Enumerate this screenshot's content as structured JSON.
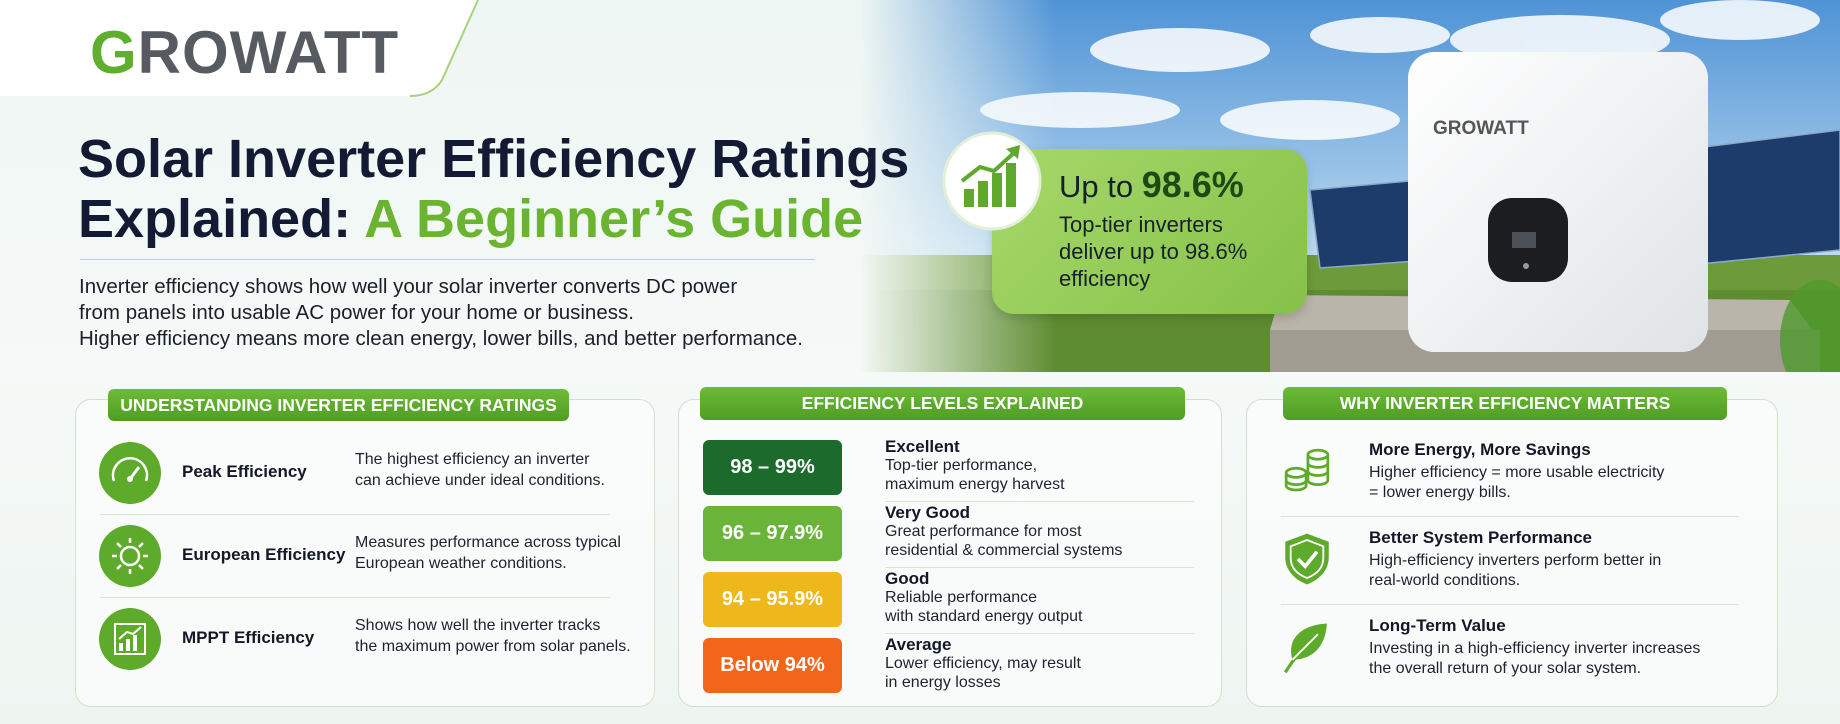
{
  "logo": "GROWATT",
  "title": {
    "line1": "Solar Inverter Efficiency Ratings",
    "line2": "Explained:",
    "highlight": "A Beginner’s Guide"
  },
  "intro": [
    "Inverter efficiency shows how well your solar inverter converts DC power",
    "from panels into usable AC power for your home or business.",
    "Higher efficiency means more clean energy, lower bills, and better performance."
  ],
  "stat": {
    "prefix": "Up to",
    "value": "98.6%",
    "lines": [
      "Top-tier inverters",
      "deliver up to 98.6%",
      "efficiency"
    ]
  },
  "device_brand": "GROWATT",
  "ratings": {
    "title": "UNDERSTANDING INVERTER EFFICIENCY RATINGS",
    "items": [
      {
        "name": "Peak Efficiency",
        "lines": [
          "The highest efficiency an inverter",
          "can achieve under ideal conditions."
        ]
      },
      {
        "name": "European Efficiency",
        "lines": [
          "Measures performance across typical",
          "European weather conditions."
        ]
      },
      {
        "name": "MPPT Efficiency",
        "lines": [
          "Shows how well the inverter tracks",
          "the maximum power from solar panels."
        ]
      }
    ]
  },
  "levels": {
    "title": "EFFICIENCY LEVELS EXPLAINED",
    "items": [
      {
        "range": "98 – 99%",
        "label": "Excellent",
        "lines": [
          "Top-tier performance,",
          "maximum energy harvest"
        ]
      },
      {
        "range": "96 – 97.9%",
        "label": "Very Good",
        "lines": [
          "Great performance for most",
          "residential & commercial systems"
        ]
      },
      {
        "range": "94 – 95.9%",
        "label": "Good",
        "lines": [
          "Reliable performance",
          "with standard energy output"
        ]
      },
      {
        "range": "Below 94%",
        "label": "Average",
        "lines": [
          "Lower efficiency, may result",
          "in energy losses"
        ]
      }
    ]
  },
  "why": {
    "title": "WHY INVERTER EFFICIENCY MATTERS",
    "items": [
      {
        "title": "More Energy, More Savings",
        "lines": [
          "Higher efficiency = more usable electricity",
          "= lower energy bills."
        ]
      },
      {
        "title": "Better System Performance",
        "lines": [
          "High-efficiency inverters perform better in",
          "real-world conditions."
        ]
      },
      {
        "title": "Long-Term Value",
        "lines": [
          "Investing in a high-efficiency inverter increases",
          "the overall return of your solar system."
        ]
      }
    ]
  }
}
